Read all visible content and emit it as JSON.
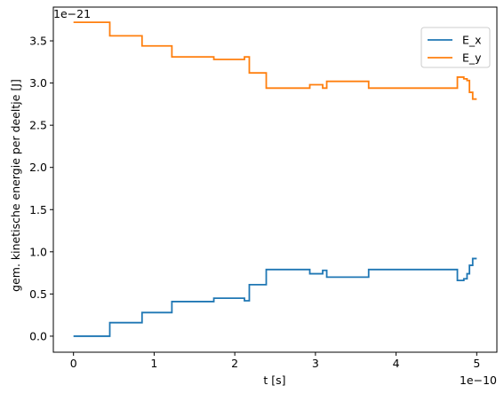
{
  "chart_data": {
    "type": "line",
    "xlabel": "t [s]",
    "ylabel": "gem. kinetische energie per deeltje [J]",
    "x_offset_label": "1e−10",
    "y_offset_label": "1e−21",
    "xlim": [
      -0.25,
      5.25
    ],
    "ylim": [
      -0.19,
      3.9
    ],
    "x_ticks": [
      0,
      1,
      2,
      3,
      4,
      5
    ],
    "x_tick_labels": [
      "0",
      "1",
      "2",
      "3",
      "4",
      "5"
    ],
    "y_ticks": [
      0.0,
      0.5,
      1.0,
      1.5,
      2.0,
      2.5,
      3.0,
      3.5
    ],
    "y_tick_labels": [
      "0.0",
      "0.5",
      "1.0",
      "1.5",
      "2.0",
      "2.5",
      "3.0",
      "3.5"
    ],
    "grid": false,
    "legend_position": "top-right",
    "step": true,
    "series": [
      {
        "name": "E_x",
        "color": "#1f77b4",
        "x": [
          0,
          0.45,
          0.85,
          1.22,
          1.74,
          2.12,
          2.18,
          2.39,
          2.93,
          3.09,
          3.14,
          3.66,
          4.76,
          4.84,
          4.88,
          4.91,
          4.95,
          5.0
        ],
        "y": [
          0.0,
          0.16,
          0.28,
          0.41,
          0.45,
          0.42,
          0.61,
          0.79,
          0.74,
          0.78,
          0.7,
          0.79,
          0.66,
          0.68,
          0.74,
          0.84,
          0.92,
          0.92
        ]
      },
      {
        "name": "E_y",
        "color": "#ff7f0e",
        "x": [
          0,
          0.45,
          0.85,
          1.22,
          1.74,
          2.12,
          2.18,
          2.39,
          2.93,
          3.09,
          3.14,
          3.66,
          4.76,
          4.84,
          4.88,
          4.91,
          4.95,
          5.0
        ],
        "y": [
          3.72,
          3.56,
          3.44,
          3.31,
          3.28,
          3.31,
          3.12,
          2.94,
          2.98,
          2.94,
          3.02,
          2.94,
          3.07,
          3.05,
          3.03,
          2.89,
          2.81,
          2.81
        ]
      }
    ]
  }
}
